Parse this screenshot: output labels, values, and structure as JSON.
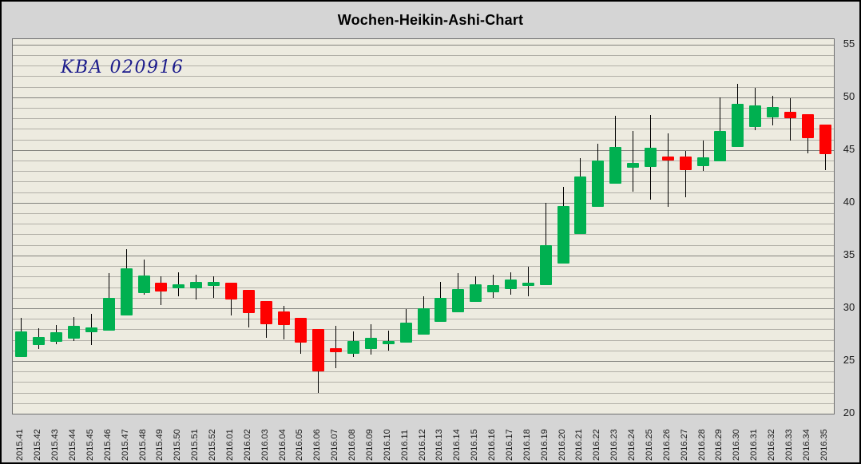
{
  "title": "Wochen-Heikin-Ashi-Chart",
  "annotation": "KBA 020916",
  "colors": {
    "chart_bg": "#d5d5d5",
    "plot_bg": "#edebe0",
    "grid_minor": "#b2b0a8",
    "grid_major": "#83837e",
    "up": "#00b050",
    "down": "#fe0000",
    "annotation_color": "#1c1c8c"
  },
  "chart_data": {
    "type": "candlestick",
    "subtype": "heikin-ashi-weekly",
    "title": "Wochen-Heikin-Ashi-Chart",
    "annotation": "KBA 020916",
    "xlabel": "",
    "ylabel": "",
    "ylim": [
      20,
      55.5
    ],
    "y_ticks": [
      20,
      25,
      30,
      35,
      40,
      45,
      50,
      55
    ],
    "grid": "horizontal, minor every 1, major every 5",
    "legend_position": "none",
    "categories": [
      "2015.41",
      "2015.42",
      "2015.43",
      "2015.44",
      "2015.45",
      "2015.46",
      "2015.47",
      "2015.48",
      "2015.49",
      "2015.50",
      "2015.51",
      "2015.52",
      "2016.01",
      "2016.02",
      "2016.03",
      "2016.04",
      "2016.05",
      "2016.06",
      "2016.07",
      "2016.08",
      "2016.09",
      "2016.10",
      "2016.11",
      "2016.12",
      "2016.13",
      "2016.14",
      "2016.15",
      "2016.16",
      "2016.17",
      "2016.18",
      "2016.19",
      "2016.20",
      "2016.21",
      "2016.22",
      "2016.23",
      "2016.24",
      "2016.25",
      "2016.26",
      "2016.27",
      "2016.28",
      "2016.29",
      "2016.30",
      "2016.31",
      "2016.32",
      "2016.33",
      "2016.34",
      "2016.35"
    ],
    "candles": [
      {
        "o": 25.4,
        "h": 29.1,
        "l": 25.4,
        "c": 27.8
      },
      {
        "o": 26.5,
        "h": 28.1,
        "l": 26.1,
        "c": 27.3
      },
      {
        "o": 26.8,
        "h": 28.4,
        "l": 26.6,
        "c": 27.7
      },
      {
        "o": 27.1,
        "h": 29.2,
        "l": 26.9,
        "c": 28.3
      },
      {
        "o": 27.7,
        "h": 29.5,
        "l": 26.5,
        "c": 28.2
      },
      {
        "o": 27.9,
        "h": 33.3,
        "l": 27.9,
        "c": 31.0
      },
      {
        "o": 29.3,
        "h": 35.6,
        "l": 29.3,
        "c": 33.8
      },
      {
        "o": 31.4,
        "h": 34.6,
        "l": 31.3,
        "c": 33.1
      },
      {
        "o": 32.4,
        "h": 33.0,
        "l": 30.3,
        "c": 31.6
      },
      {
        "o": 31.9,
        "h": 33.4,
        "l": 31.1,
        "c": 32.3
      },
      {
        "o": 31.9,
        "h": 33.2,
        "l": 30.8,
        "c": 32.5
      },
      {
        "o": 32.1,
        "h": 33.0,
        "l": 31.0,
        "c": 32.5
      },
      {
        "o": 32.4,
        "h": 32.4,
        "l": 29.3,
        "c": 30.8
      },
      {
        "o": 31.7,
        "h": 31.7,
        "l": 28.2,
        "c": 29.5
      },
      {
        "o": 30.7,
        "h": 30.7,
        "l": 27.2,
        "c": 28.5
      },
      {
        "o": 29.7,
        "h": 30.2,
        "l": 27.0,
        "c": 28.4
      },
      {
        "o": 29.1,
        "h": 29.1,
        "l": 25.7,
        "c": 26.7
      },
      {
        "o": 28.0,
        "h": 28.0,
        "l": 22.0,
        "c": 24.0
      },
      {
        "o": 26.2,
        "h": 28.3,
        "l": 24.3,
        "c": 25.8
      },
      {
        "o": 25.7,
        "h": 27.8,
        "l": 25.4,
        "c": 26.9
      },
      {
        "o": 26.1,
        "h": 28.5,
        "l": 25.6,
        "c": 27.2
      },
      {
        "o": 26.6,
        "h": 27.9,
        "l": 26.0,
        "c": 26.9
      },
      {
        "o": 26.7,
        "h": 29.9,
        "l": 26.7,
        "c": 28.6
      },
      {
        "o": 27.5,
        "h": 31.1,
        "l": 27.5,
        "c": 30.0
      },
      {
        "o": 28.7,
        "h": 32.5,
        "l": 28.7,
        "c": 31.0
      },
      {
        "o": 29.6,
        "h": 33.3,
        "l": 29.6,
        "c": 31.8
      },
      {
        "o": 30.6,
        "h": 33.0,
        "l": 30.6,
        "c": 32.3
      },
      {
        "o": 31.5,
        "h": 33.2,
        "l": 31.0,
        "c": 32.2
      },
      {
        "o": 31.8,
        "h": 33.4,
        "l": 31.3,
        "c": 32.7
      },
      {
        "o": 32.1,
        "h": 33.9,
        "l": 31.1,
        "c": 32.4
      },
      {
        "o": 32.2,
        "h": 40.0,
        "l": 32.2,
        "c": 36.0
      },
      {
        "o": 34.2,
        "h": 41.5,
        "l": 34.2,
        "c": 39.7
      },
      {
        "o": 37.0,
        "h": 44.2,
        "l": 37.0,
        "c": 42.5
      },
      {
        "o": 39.6,
        "h": 45.6,
        "l": 39.6,
        "c": 44.0
      },
      {
        "o": 41.8,
        "h": 48.2,
        "l": 41.8,
        "c": 45.3
      },
      {
        "o": 43.3,
        "h": 46.8,
        "l": 41.0,
        "c": 43.8
      },
      {
        "o": 43.4,
        "h": 48.3,
        "l": 40.3,
        "c": 45.2
      },
      {
        "o": 44.4,
        "h": 46.6,
        "l": 39.6,
        "c": 44.0
      },
      {
        "o": 44.4,
        "h": 44.9,
        "l": 40.5,
        "c": 43.1
      },
      {
        "o": 43.5,
        "h": 45.9,
        "l": 43.0,
        "c": 44.3
      },
      {
        "o": 43.9,
        "h": 50.0,
        "l": 43.9,
        "c": 46.8
      },
      {
        "o": 45.3,
        "h": 51.3,
        "l": 45.3,
        "c": 49.4
      },
      {
        "o": 47.2,
        "h": 50.9,
        "l": 46.9,
        "c": 49.2
      },
      {
        "o": 48.1,
        "h": 50.1,
        "l": 47.3,
        "c": 49.1
      },
      {
        "o": 48.6,
        "h": 49.9,
        "l": 45.9,
        "c": 48.0
      },
      {
        "o": 48.4,
        "h": 48.4,
        "l": 44.7,
        "c": 46.1
      },
      {
        "o": 47.4,
        "h": 47.4,
        "l": 43.1,
        "c": 44.6
      }
    ]
  }
}
